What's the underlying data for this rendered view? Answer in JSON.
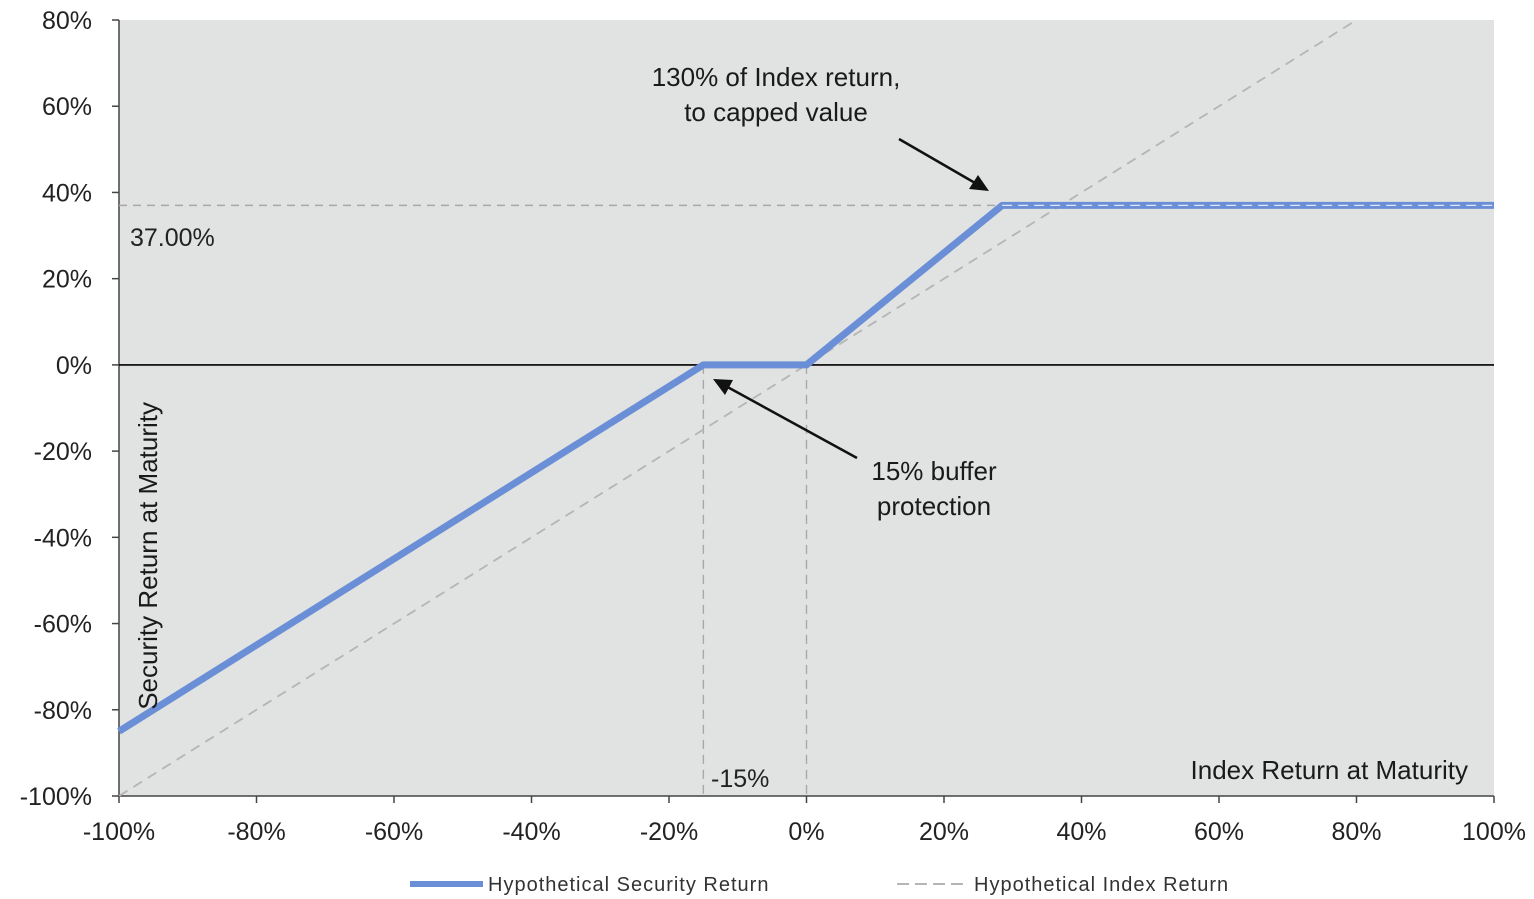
{
  "chart_data": {
    "type": "line",
    "xlabel": "Index Return at Maturity",
    "ylabel": "Security Return at Maturity",
    "xlim": [
      -100,
      100
    ],
    "ylim": [
      -100,
      80
    ],
    "x_ticks": [
      "-100%",
      "-80%",
      "-60%",
      "-40%",
      "-20%",
      "0%",
      "20%",
      "40%",
      "60%",
      "80%",
      "100%"
    ],
    "y_ticks": [
      "80%",
      "60%",
      "40%",
      "20%",
      "0%",
      "-20%",
      "-40%",
      "-60%",
      "-80%",
      "-100%"
    ],
    "series": [
      {
        "name": "Hypothetical Security Return",
        "color": "#6b8fd6",
        "style": "solid",
        "points": [
          [
            -100,
            -85
          ],
          [
            -15,
            0
          ],
          [
            0,
            0
          ],
          [
            28.46,
            37
          ],
          [
            100,
            37
          ]
        ]
      },
      {
        "name": "Hypothetical Index Return",
        "color": "#b5b5b5",
        "style": "dashed",
        "points": [
          [
            -100,
            -100
          ],
          [
            80,
            80
          ]
        ]
      }
    ],
    "reference_lines": {
      "cap_value": 37,
      "cap_label": "37.00%",
      "buffer_x": -15,
      "buffer_label": "-15%",
      "zero_x": 0
    },
    "annotations": [
      {
        "text_lines": [
          "130% of Index return,",
          "to capped value"
        ],
        "points_to": [
          28,
          38
        ]
      },
      {
        "text_lines": [
          "15% buffer",
          "protection"
        ],
        "points_to": [
          -14,
          -3
        ]
      }
    ],
    "grid": false,
    "legend_position": "bottom",
    "colors": {
      "plot_background": "#e1e2e2",
      "zero_line": "#000000"
    }
  }
}
